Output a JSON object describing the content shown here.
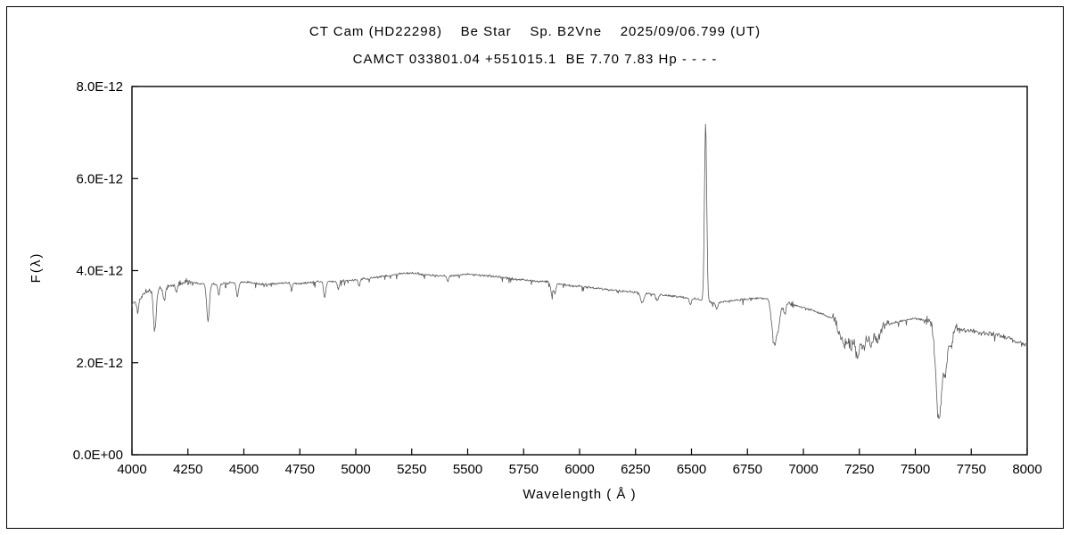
{
  "chart_data": {
    "type": "line",
    "title_line1": "CT Cam (HD22298)    Be Star    Sp. B2Vne    2025/09/06.799 (UT)",
    "title_line2": "CAMCT 033801.04 +551015.1  BE 7.70 7.83 Hp - - - -",
    "xlabel": "Wavelength ( Å )",
    "ylabel": "F(λ)",
    "xlim": [
      4000,
      8000
    ],
    "ylim": [
      0,
      8e-12
    ],
    "grid": false,
    "legend": "none",
    "line_color": "#5a5a5a",
    "frame_color": "#000000",
    "x_major_ticks": [
      4000,
      4250,
      4500,
      4750,
      5000,
      5250,
      5500,
      5750,
      6000,
      6250,
      6500,
      6750,
      7000,
      7250,
      7500,
      7750,
      8000
    ],
    "x_tick_labels": [
      "4000",
      "4250",
      "4500",
      "4750",
      "5000",
      "5250",
      "5500",
      "5750",
      "6000",
      "6250",
      "6500",
      "6750",
      "7000",
      "7250",
      "7500",
      "7750",
      "8000"
    ],
    "y_major_ticks": [
      0,
      2e-12,
      4e-12,
      6e-12,
      8e-12
    ],
    "y_tick_labels": [
      "0.0E+00",
      "2.0E-12",
      "4.0E-12",
      "6.0E-12",
      "8.0E-12"
    ],
    "flux_scale": 1e-12,
    "continuum_anchors": [
      [
        4000,
        3.25
      ],
      [
        4030,
        3.42
      ],
      [
        4060,
        3.52
      ],
      [
        4090,
        3.56
      ],
      [
        4120,
        3.6
      ],
      [
        4160,
        3.66
      ],
      [
        4200,
        3.72
      ],
      [
        4250,
        3.76
      ],
      [
        4300,
        3.72
      ],
      [
        4350,
        3.7
      ],
      [
        4400,
        3.72
      ],
      [
        4450,
        3.74
      ],
      [
        4500,
        3.76
      ],
      [
        4550,
        3.72
      ],
      [
        4600,
        3.7
      ],
      [
        4650,
        3.72
      ],
      [
        4700,
        3.74
      ],
      [
        4750,
        3.72
      ],
      [
        4800,
        3.74
      ],
      [
        4850,
        3.77
      ],
      [
        4900,
        3.76
      ],
      [
        4950,
        3.78
      ],
      [
        5000,
        3.8
      ],
      [
        5050,
        3.83
      ],
      [
        5100,
        3.86
      ],
      [
        5150,
        3.89
      ],
      [
        5200,
        3.93
      ],
      [
        5250,
        3.95
      ],
      [
        5300,
        3.92
      ],
      [
        5350,
        3.9
      ],
      [
        5400,
        3.88
      ],
      [
        5450,
        3.9
      ],
      [
        5500,
        3.92
      ],
      [
        5550,
        3.9
      ],
      [
        5600,
        3.88
      ],
      [
        5650,
        3.86
      ],
      [
        5700,
        3.83
      ],
      [
        5750,
        3.8
      ],
      [
        5800,
        3.78
      ],
      [
        5850,
        3.76
      ],
      [
        5900,
        3.71
      ],
      [
        5950,
        3.68
      ],
      [
        6000,
        3.66
      ],
      [
        6050,
        3.63
      ],
      [
        6100,
        3.6
      ],
      [
        6150,
        3.58
      ],
      [
        6200,
        3.56
      ],
      [
        6250,
        3.53
      ],
      [
        6300,
        3.5
      ],
      [
        6350,
        3.48
      ],
      [
        6400,
        3.46
      ],
      [
        6450,
        3.43
      ],
      [
        6500,
        3.4
      ],
      [
        6550,
        3.36
      ],
      [
        6600,
        3.3
      ],
      [
        6650,
        3.33
      ],
      [
        6700,
        3.36
      ],
      [
        6750,
        3.38
      ],
      [
        6800,
        3.4
      ],
      [
        6850,
        3.39
      ],
      [
        6900,
        3.3
      ],
      [
        6950,
        3.26
      ],
      [
        7000,
        3.2
      ],
      [
        7050,
        3.12
      ],
      [
        7100,
        3.02
      ],
      [
        7150,
        2.92
      ],
      [
        7200,
        2.82
      ],
      [
        7250,
        2.72
      ],
      [
        7300,
        2.72
      ],
      [
        7350,
        2.78
      ],
      [
        7400,
        2.86
      ],
      [
        7450,
        2.92
      ],
      [
        7500,
        2.96
      ],
      [
        7550,
        2.92
      ],
      [
        7600,
        2.86
      ],
      [
        7650,
        2.82
      ],
      [
        7700,
        2.72
      ],
      [
        7750,
        2.7
      ],
      [
        7800,
        2.66
      ],
      [
        7850,
        2.62
      ],
      [
        7900,
        2.56
      ],
      [
        7950,
        2.46
      ],
      [
        8000,
        2.38
      ]
    ],
    "absorption_features": [
      {
        "center": 4026,
        "sigma": 5,
        "depth": 0.28
      },
      {
        "center": 4102,
        "sigma": 6,
        "depth": 0.85
      },
      {
        "center": 4144,
        "sigma": 5,
        "depth": 0.3
      },
      {
        "center": 4200,
        "sigma": 4,
        "depth": 0.18
      },
      {
        "center": 4340,
        "sigma": 6,
        "depth": 0.8
      },
      {
        "center": 4388,
        "sigma": 4,
        "depth": 0.25
      },
      {
        "center": 4471,
        "sigma": 5,
        "depth": 0.3
      },
      {
        "center": 4713,
        "sigma": 4,
        "depth": 0.15
      },
      {
        "center": 4861,
        "sigma": 5,
        "depth": 0.35
      },
      {
        "center": 4922,
        "sigma": 4,
        "depth": 0.18
      },
      {
        "center": 5015,
        "sigma": 4,
        "depth": 0.15
      },
      {
        "center": 5411,
        "sigma": 4,
        "depth": 0.12
      },
      {
        "center": 5876,
        "sigma": 5,
        "depth": 0.25
      },
      {
        "center": 5890,
        "sigma": 4,
        "depth": 0.22
      },
      {
        "center": 6280,
        "sigma": 7,
        "depth": 0.22
      },
      {
        "center": 6347,
        "sigma": 5,
        "depth": 0.12
      },
      {
        "center": 6495,
        "sigma": 5,
        "depth": 0.15
      },
      {
        "center": 6613,
        "sigma": 5,
        "depth": 0.15
      },
      {
        "center": 6870,
        "sigma": 11,
        "depth": 0.95
      },
      {
        "center": 6890,
        "sigma": 7,
        "depth": 0.4
      },
      {
        "center": 6915,
        "sigma": 6,
        "depth": 0.25
      },
      {
        "center": 7165,
        "sigma": 12,
        "depth": 0.3
      },
      {
        "center": 7185,
        "sigma": 9,
        "depth": 0.35
      },
      {
        "center": 7210,
        "sigma": 11,
        "depth": 0.4
      },
      {
        "center": 7240,
        "sigma": 9,
        "depth": 0.55
      },
      {
        "center": 7268,
        "sigma": 11,
        "depth": 0.4
      },
      {
        "center": 7300,
        "sigma": 10,
        "depth": 0.3
      },
      {
        "center": 7330,
        "sigma": 10,
        "depth": 0.25
      },
      {
        "center": 7605,
        "sigma": 13,
        "depth": 2.1
      },
      {
        "center": 7635,
        "sigma": 9,
        "depth": 0.9
      },
      {
        "center": 7660,
        "sigma": 8,
        "depth": 0.45
      }
    ],
    "emission_features": [
      {
        "center": 6563,
        "sigma": 5,
        "height": 3.86
      }
    ],
    "noise_base_amplitude": 0.03,
    "noise_regions": [
      {
        "range": [
          4000,
          4280
        ],
        "extra": 0.05
      },
      {
        "range": [
          6840,
          6960
        ],
        "extra": 0.06
      },
      {
        "range": [
          7130,
          7380
        ],
        "extra": 0.11
      },
      {
        "range": [
          7540,
          7700
        ],
        "extra": 0.09
      },
      {
        "range": [
          7700,
          8000
        ],
        "extra": 0.03
      }
    ]
  }
}
